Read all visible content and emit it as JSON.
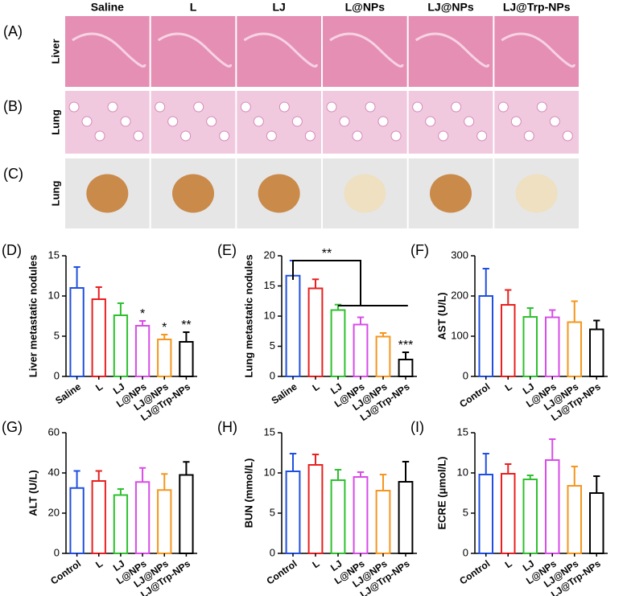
{
  "column_headers": [
    "Saline",
    "L",
    "LJ",
    "L@NPs",
    "LJ@NPs",
    "LJ@Trp-NPs"
  ],
  "rows": [
    {
      "panel_label": "(A)",
      "label": "Liver"
    },
    {
      "panel_label": "(B)",
      "label": "Lung"
    },
    {
      "panel_label": "(C)",
      "label": "Lung"
    }
  ],
  "chart_data": [
    {
      "type": "bar",
      "panel_label": "(D)",
      "ylabel": "Liver metastatic nodules",
      "categories": [
        "Saline",
        "L",
        "LJ",
        "L@NPs",
        "LJ@NPs",
        "LJ@Trp-NPs"
      ],
      "values": [
        11,
        9.6,
        7.6,
        6.3,
        4.6,
        4.3
      ],
      "errors": [
        2.6,
        1.5,
        1.5,
        0.6,
        0.6,
        1.2
      ],
      "colors": [
        "#1f4fe0",
        "#e8201f",
        "#2ec02e",
        "#d84ce8",
        "#f5961e",
        "#000000"
      ],
      "ylim": [
        0,
        15
      ],
      "yticks": [
        0,
        5,
        10,
        15
      ],
      "significance": [
        null,
        null,
        null,
        "*",
        "*",
        "**"
      ]
    },
    {
      "type": "bar",
      "panel_label": "(E)",
      "ylabel": "Lung metastatic nodules",
      "categories": [
        "Saline",
        "L",
        "LJ",
        "L@NPs",
        "LJ@NPs",
        "LJ@Trp-NPs"
      ],
      "values": [
        16.7,
        14.6,
        11,
        8.6,
        6.6,
        2.8
      ],
      "errors": [
        2.5,
        1.5,
        0.9,
        1.2,
        0.6,
        1.2
      ],
      "colors": [
        "#1f4fe0",
        "#e8201f",
        "#2ec02e",
        "#d84ce8",
        "#f5961e",
        "#000000"
      ],
      "ylim": [
        0,
        20
      ],
      "yticks": [
        0,
        5,
        10,
        15,
        20
      ],
      "significance": [
        null,
        null,
        null,
        null,
        null,
        "***"
      ],
      "bracket_label": "**"
    },
    {
      "type": "bar",
      "panel_label": "(F)",
      "ylabel": "AST (U/L)",
      "categories": [
        "Control",
        "L",
        "LJ",
        "L@NPs",
        "LJ@NPs",
        "LJ@Trp-NPs"
      ],
      "values": [
        200,
        178,
        148,
        147,
        135,
        117
      ],
      "errors": [
        68,
        37,
        22,
        18,
        52,
        22
      ],
      "colors": [
        "#1f4fe0",
        "#e8201f",
        "#2ec02e",
        "#d84ce8",
        "#f5961e",
        "#000000"
      ],
      "ylim": [
        0,
        300
      ],
      "yticks": [
        0,
        100,
        200,
        300
      ]
    },
    {
      "type": "bar",
      "panel_label": "(G)",
      "ylabel": "ALT (U/L)",
      "categories": [
        "Control",
        "L",
        "LJ",
        "L@NPs",
        "LJ@NPs",
        "LJ@Trp-NPs"
      ],
      "values": [
        32.5,
        36,
        29,
        35.5,
        31.5,
        39
      ],
      "errors": [
        8.5,
        5,
        3,
        7,
        8,
        6.5
      ],
      "colors": [
        "#1f4fe0",
        "#e8201f",
        "#2ec02e",
        "#d84ce8",
        "#f5961e",
        "#000000"
      ],
      "ylim": [
        0,
        60
      ],
      "yticks": [
        0,
        20,
        40,
        60
      ]
    },
    {
      "type": "bar",
      "panel_label": "(H)",
      "ylabel": "BUN (mmol/L)",
      "categories": [
        "Control",
        "L",
        "LJ",
        "L@NPs",
        "LJ@NPs",
        "LJ@Trp-NPs"
      ],
      "values": [
        10.2,
        11,
        9.1,
        9.5,
        7.8,
        8.9
      ],
      "errors": [
        2.2,
        1.3,
        1.3,
        0.6,
        2,
        2.5
      ],
      "colors": [
        "#1f4fe0",
        "#e8201f",
        "#2ec02e",
        "#d84ce8",
        "#f5961e",
        "#000000"
      ],
      "ylim": [
        0,
        15
      ],
      "yticks": [
        0,
        5,
        10,
        15
      ]
    },
    {
      "type": "bar",
      "panel_label": "(I)",
      "ylabel": "ECRE (μmol/L)",
      "categories": [
        "Control",
        "L",
        "LJ",
        "L@NPs",
        "LJ@NPs",
        "LJ@Trp-NPs"
      ],
      "values": [
        9.8,
        9.9,
        9.2,
        11.6,
        8.4,
        7.5
      ],
      "errors": [
        2.6,
        1.2,
        0.5,
        2.6,
        2.4,
        2.1
      ],
      "colors": [
        "#1f4fe0",
        "#e8201f",
        "#2ec02e",
        "#d84ce8",
        "#f5961e",
        "#000000"
      ],
      "ylim": [
        0,
        15
      ],
      "yticks": [
        0,
        5,
        10,
        15
      ]
    }
  ]
}
